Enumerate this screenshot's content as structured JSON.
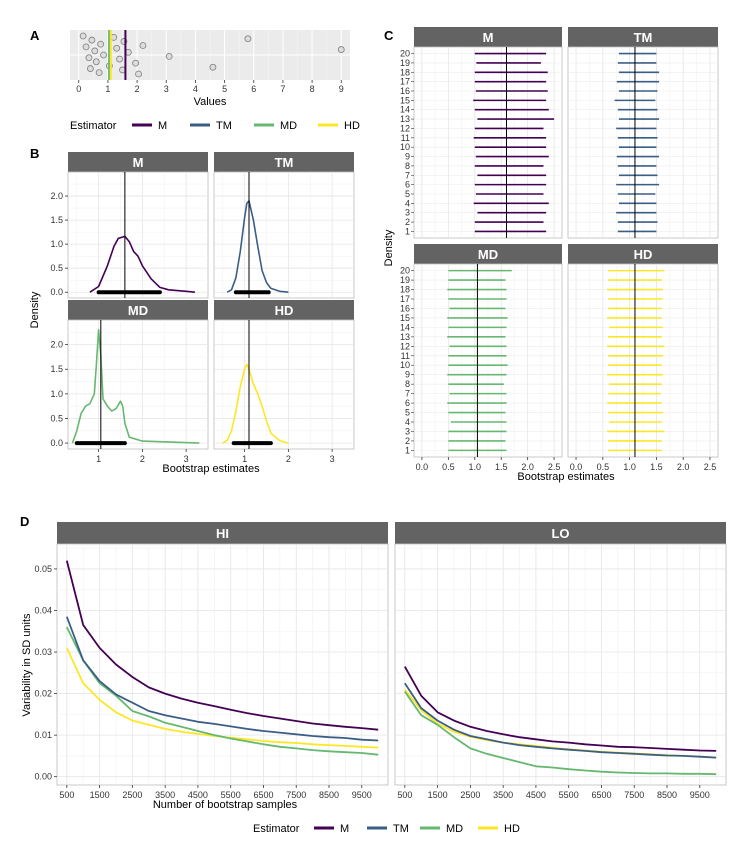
{
  "panel_tags": {
    "a": "A",
    "b": "B",
    "c": "C",
    "d": "D"
  },
  "legend": {
    "title": "Estimator",
    "items": [
      {
        "label": "M",
        "color": "#440154"
      },
      {
        "label": "TM",
        "color": "#3b5e87"
      },
      {
        "label": "MD",
        "color": "#66b870"
      },
      {
        "label": "HD",
        "color": "#fde725"
      }
    ]
  },
  "chart_data": [
    {
      "id": "A",
      "type": "scatter",
      "xlabel": "Values",
      "ylabel": "",
      "xlim": [
        -0.3,
        9.3
      ],
      "xticks": [
        0,
        1,
        2,
        3,
        4,
        5,
        6,
        7,
        8,
        9
      ],
      "points": [
        0.15,
        0.25,
        0.35,
        0.4,
        0.45,
        0.55,
        0.6,
        0.7,
        0.75,
        0.85,
        1.05,
        1.2,
        1.3,
        1.4,
        1.5,
        1.55,
        1.7,
        1.95,
        2.05,
        2.2,
        3.1,
        4.6,
        5.8,
        9.0
      ],
      "vlines": [
        {
          "estimator": "M",
          "value": 1.6
        },
        {
          "estimator": "TM",
          "value": 1.08
        },
        {
          "estimator": "MD",
          "value": 1.04
        },
        {
          "estimator": "HD",
          "value": 1.1
        }
      ]
    },
    {
      "id": "B",
      "type": "area",
      "xlabel": "Bootstrap estimates",
      "ylabel": "Density",
      "xlim": [
        0.3,
        3.5
      ],
      "ylim": [
        -0.12,
        2.5
      ],
      "xticks": [
        1,
        2,
        3
      ],
      "yticks": [
        0.0,
        0.5,
        1.0,
        1.5,
        2.0
      ],
      "facets": [
        {
          "name": "M",
          "estimate": 1.6,
          "interval": [
            1.0,
            2.4
          ],
          "curve": [
            [
              0.8,
              0
            ],
            [
              1.0,
              0.12
            ],
            [
              1.2,
              0.55
            ],
            [
              1.35,
              0.95
            ],
            [
              1.45,
              1.12
            ],
            [
              1.6,
              1.16
            ],
            [
              1.7,
              1.05
            ],
            [
              1.8,
              0.85
            ],
            [
              1.9,
              0.75
            ],
            [
              2.0,
              0.55
            ],
            [
              2.2,
              0.28
            ],
            [
              2.4,
              0.1
            ],
            [
              2.6,
              0.05
            ],
            [
              3.0,
              0.02
            ],
            [
              3.2,
              0
            ]
          ]
        },
        {
          "name": "TM",
          "estimate": 1.1,
          "interval": [
            0.8,
            1.55
          ],
          "curve": [
            [
              0.6,
              0
            ],
            [
              0.7,
              0.05
            ],
            [
              0.8,
              0.3
            ],
            [
              0.9,
              0.85
            ],
            [
              1.0,
              1.55
            ],
            [
              1.05,
              1.85
            ],
            [
              1.1,
              1.9
            ],
            [
              1.2,
              1.5
            ],
            [
              1.3,
              0.95
            ],
            [
              1.4,
              0.45
            ],
            [
              1.5,
              0.2
            ],
            [
              1.6,
              0.08
            ],
            [
              1.8,
              0.02
            ],
            [
              2.0,
              0
            ]
          ]
        },
        {
          "name": "MD",
          "estimate": 1.05,
          "interval": [
            0.5,
            1.6
          ],
          "curve": [
            [
              0.4,
              0
            ],
            [
              0.5,
              0.25
            ],
            [
              0.6,
              0.6
            ],
            [
              0.7,
              0.75
            ],
            [
              0.8,
              0.8
            ],
            [
              0.9,
              1.0
            ],
            [
              0.95,
              1.6
            ],
            [
              1.0,
              2.3
            ],
            [
              1.05,
              1.8
            ],
            [
              1.1,
              0.9
            ],
            [
              1.2,
              0.75
            ],
            [
              1.3,
              0.65
            ],
            [
              1.4,
              0.7
            ],
            [
              1.5,
              0.85
            ],
            [
              1.55,
              0.75
            ],
            [
              1.6,
              0.4
            ],
            [
              1.7,
              0.12
            ],
            [
              2.0,
              0.04
            ],
            [
              3.3,
              0.0
            ]
          ]
        },
        {
          "name": "HD",
          "estimate": 1.1,
          "interval": [
            0.75,
            1.6
          ],
          "curve": [
            [
              0.5,
              0
            ],
            [
              0.6,
              0.05
            ],
            [
              0.7,
              0.25
            ],
            [
              0.8,
              0.65
            ],
            [
              0.9,
              1.15
            ],
            [
              1.0,
              1.5
            ],
            [
              1.05,
              1.6
            ],
            [
              1.1,
              1.5
            ],
            [
              1.2,
              1.2
            ],
            [
              1.3,
              1.0
            ],
            [
              1.4,
              0.75
            ],
            [
              1.5,
              0.45
            ],
            [
              1.6,
              0.2
            ],
            [
              1.8,
              0.05
            ],
            [
              2.0,
              0
            ]
          ]
        }
      ]
    },
    {
      "id": "C",
      "type": "scatter",
      "xlabel": "Bootstrap estimates",
      "ylabel": "Density",
      "xlim": [
        -0.15,
        2.65
      ],
      "xticks": [
        0.0,
        0.5,
        1.0,
        1.5,
        2.0,
        2.5
      ],
      "xtick_labels": [
        "0.0",
        "0.5",
        "1.0",
        "1.5",
        "2.0",
        "2.5"
      ],
      "yticks": [
        1,
        2,
        3,
        4,
        5,
        6,
        7,
        8,
        9,
        10,
        11,
        12,
        13,
        14,
        15,
        16,
        17,
        18,
        19,
        20
      ],
      "facets": [
        {
          "name": "M",
          "estimate": 1.6,
          "intervals": [
            [
              1.0,
              2.35
            ],
            [
              1.0,
              2.3
            ],
            [
              1.05,
              2.35
            ],
            [
              0.98,
              2.4
            ],
            [
              1.02,
              2.3
            ],
            [
              1.0,
              2.35
            ],
            [
              1.05,
              2.35
            ],
            [
              1.0,
              2.3
            ],
            [
              1.02,
              2.4
            ],
            [
              1.0,
              2.35
            ],
            [
              0.98,
              2.35
            ],
            [
              1.0,
              2.3
            ],
            [
              1.05,
              2.5
            ],
            [
              1.0,
              2.4
            ],
            [
              0.97,
              2.35
            ],
            [
              1.02,
              2.38
            ],
            [
              1.0,
              2.35
            ],
            [
              1.0,
              2.38
            ],
            [
              1.03,
              2.25
            ],
            [
              1.0,
              2.35
            ]
          ]
        },
        {
          "name": "TM",
          "estimate": 1.1,
          "intervals": [
            [
              0.78,
              1.5
            ],
            [
              0.78,
              1.52
            ],
            [
              0.75,
              1.5
            ],
            [
              0.8,
              1.5
            ],
            [
              0.78,
              1.48
            ],
            [
              0.75,
              1.55
            ],
            [
              0.8,
              1.52
            ],
            [
              0.78,
              1.5
            ],
            [
              0.76,
              1.55
            ],
            [
              0.8,
              1.5
            ],
            [
              0.78,
              1.52
            ],
            [
              0.75,
              1.5
            ],
            [
              0.8,
              1.55
            ],
            [
              0.78,
              1.52
            ],
            [
              0.72,
              1.48
            ],
            [
              0.8,
              1.52
            ],
            [
              0.76,
              1.55
            ],
            [
              0.8,
              1.55
            ],
            [
              0.78,
              1.5
            ],
            [
              0.8,
              1.5
            ]
          ]
        },
        {
          "name": "MD",
          "estimate": 1.05,
          "intervals": [
            [
              0.5,
              1.6
            ],
            [
              0.5,
              1.58
            ],
            [
              0.5,
              1.6
            ],
            [
              0.55,
              1.6
            ],
            [
              0.5,
              1.58
            ],
            [
              0.48,
              1.6
            ],
            [
              0.52,
              1.6
            ],
            [
              0.5,
              1.55
            ],
            [
              0.48,
              1.6
            ],
            [
              0.5,
              1.62
            ],
            [
              0.5,
              1.6
            ],
            [
              0.52,
              1.6
            ],
            [
              0.48,
              1.58
            ],
            [
              0.5,
              1.6
            ],
            [
              0.48,
              1.62
            ],
            [
              0.52,
              1.58
            ],
            [
              0.5,
              1.6
            ],
            [
              0.48,
              1.6
            ],
            [
              0.5,
              1.58
            ],
            [
              0.5,
              1.7
            ]
          ]
        },
        {
          "name": "HD",
          "estimate": 1.1,
          "intervals": [
            [
              0.6,
              1.6
            ],
            [
              0.6,
              1.6
            ],
            [
              0.58,
              1.65
            ],
            [
              0.62,
              1.6
            ],
            [
              0.6,
              1.62
            ],
            [
              0.58,
              1.6
            ],
            [
              0.6,
              1.58
            ],
            [
              0.62,
              1.6
            ],
            [
              0.58,
              1.62
            ],
            [
              0.6,
              1.6
            ],
            [
              0.6,
              1.62
            ],
            [
              0.58,
              1.65
            ],
            [
              0.6,
              1.6
            ],
            [
              0.62,
              1.62
            ],
            [
              0.58,
              1.6
            ],
            [
              0.6,
              1.6
            ],
            [
              0.6,
              1.62
            ],
            [
              0.58,
              1.62
            ],
            [
              0.6,
              1.6
            ],
            [
              0.6,
              1.65
            ]
          ]
        }
      ]
    },
    {
      "id": "D",
      "type": "line",
      "xlabel": "Number of bootstrap samples",
      "ylabel": "Variability in SD units",
      "xlim": [
        200,
        10300
      ],
      "ylim": [
        -0.002,
        0.056
      ],
      "xticks": [
        500,
        1500,
        2500,
        3500,
        4500,
        5500,
        6500,
        7500,
        8500,
        9500
      ],
      "yticks": [
        0.0,
        0.01,
        0.02,
        0.03,
        0.04,
        0.05
      ],
      "ytick_labels": [
        "0.00",
        "0.01",
        "0.02",
        "0.03",
        "0.04",
        "0.05"
      ],
      "x": [
        500,
        1000,
        1500,
        2000,
        2500,
        3000,
        3500,
        4000,
        4500,
        5000,
        5500,
        6000,
        6500,
        7000,
        7500,
        8000,
        8500,
        9000,
        9500,
        10000
      ],
      "facets": [
        {
          "name": "HI",
          "series": [
            {
              "name": "M",
              "values": [
                0.052,
                0.0365,
                0.031,
                0.027,
                0.024,
                0.0215,
                0.02,
                0.0188,
                0.0178,
                0.017,
                0.0161,
                0.0153,
                0.0146,
                0.014,
                0.0134,
                0.0128,
                0.0124,
                0.012,
                0.0117,
                0.0113
              ]
            },
            {
              "name": "TM",
              "values": [
                0.0385,
                0.028,
                0.023,
                0.0198,
                0.0178,
                0.0158,
                0.0148,
                0.014,
                0.0132,
                0.0127,
                0.0121,
                0.0115,
                0.011,
                0.0106,
                0.0102,
                0.0098,
                0.0095,
                0.0093,
                0.0089,
                0.0087
              ]
            },
            {
              "name": "MD",
              "values": [
                0.036,
                0.028,
                0.0225,
                0.0195,
                0.0158,
                0.0145,
                0.013,
                0.012,
                0.011,
                0.01,
                0.0092,
                0.0085,
                0.0078,
                0.0072,
                0.0068,
                0.0064,
                0.0061,
                0.0059,
                0.0057,
                0.0053
              ]
            },
            {
              "name": "HD",
              "values": [
                0.031,
                0.0225,
                0.0185,
                0.0155,
                0.0135,
                0.0125,
                0.0115,
                0.0108,
                0.0103,
                0.0098,
                0.0094,
                0.009,
                0.0086,
                0.0083,
                0.0081,
                0.0078,
                0.0076,
                0.0074,
                0.0072,
                0.007
              ]
            }
          ]
        },
        {
          "name": "LO",
          "series": [
            {
              "name": "M",
              "values": [
                0.0265,
                0.0195,
                0.0155,
                0.0135,
                0.012,
                0.011,
                0.0102,
                0.0095,
                0.009,
                0.0085,
                0.0082,
                0.0078,
                0.0075,
                0.0072,
                0.0071,
                0.0069,
                0.0067,
                0.0065,
                0.0063,
                0.0062
              ]
            },
            {
              "name": "TM",
              "values": [
                0.0225,
                0.0165,
                0.0135,
                0.0113,
                0.0098,
                0.009,
                0.0082,
                0.0076,
                0.0072,
                0.0068,
                0.0065,
                0.0062,
                0.0059,
                0.0057,
                0.0055,
                0.0053,
                0.0051,
                0.005,
                0.0048,
                0.0046
              ]
            },
            {
              "name": "MD",
              "values": [
                0.0205,
                0.0148,
                0.0125,
                0.0095,
                0.0068,
                0.0055,
                0.0045,
                0.0035,
                0.0025,
                0.0022,
                0.0018,
                0.0015,
                0.0012,
                0.001,
                0.0009,
                0.0008,
                0.0008,
                0.0007,
                0.0007,
                0.0006
              ]
            },
            {
              "name": "HD",
              "values": [
                0.021,
                0.016,
                0.0128,
                0.0108,
                0.0096,
                0.0088,
                0.0082,
                0.0078,
                0.0074,
                0.007,
                0.0066,
                0.0063,
                0.006,
                0.0058,
                0.0056,
                0.0054,
                0.0052,
                0.005,
                0.0048,
                0.0046
              ]
            }
          ]
        }
      ]
    }
  ]
}
